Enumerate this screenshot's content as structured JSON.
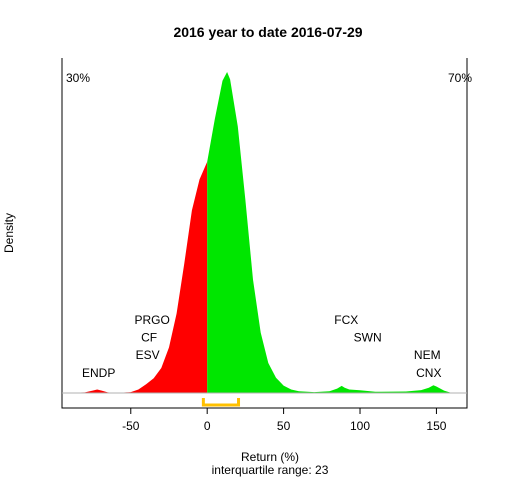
{
  "chart_data": {
    "type": "area",
    "title": "2016  year to date 2016-07-29",
    "xlabel": "Return (%)",
    "ylabel": "Density",
    "subtitle": "interquartile range: 23",
    "xlim": [
      -95,
      170
    ],
    "x_ticks": [
      "-50",
      "0",
      "50",
      "100",
      "150"
    ],
    "split_at": 0,
    "negative_share": "30%",
    "positive_share": "70%",
    "negative_color": "#ff0000",
    "positive_color": "#00e600",
    "iqr_color": "#ffc000",
    "iqr_range": [
      -2.5,
      20.5
    ],
    "density": {
      "x": [
        -95,
        -80,
        -75,
        -72,
        -69,
        -65,
        -60,
        -50,
        -45,
        -40,
        -35,
        -30,
        -25,
        -20,
        -15,
        -10,
        -5,
        0,
        5,
        10,
        13,
        15,
        20,
        25,
        30,
        35,
        40,
        45,
        50,
        55,
        60,
        70,
        80,
        85,
        88,
        90,
        93,
        100,
        110,
        130,
        140,
        145,
        148,
        150,
        155,
        160
      ],
      "y": [
        0,
        0.0002,
        0.0008,
        0.0012,
        0.0008,
        0.0002,
        0,
        0.0003,
        0.0012,
        0.003,
        0.005,
        0.0085,
        0.0155,
        0.027,
        0.044,
        0.062,
        0.0725,
        0.0785,
        0.093,
        0.106,
        0.109,
        0.1065,
        0.0905,
        0.0655,
        0.0385,
        0.0205,
        0.0102,
        0.0052,
        0.0025,
        0.0012,
        0.0006,
        0.0003,
        0.0006,
        0.0015,
        0.0024,
        0.0018,
        0.0012,
        0.0009,
        0.0004,
        0.0005,
        0.001,
        0.0018,
        0.0026,
        0.0022,
        0.0008,
        0
      ]
    },
    "annotations": [
      {
        "text": "ENDP",
        "x": -71,
        "y": 0.0055
      },
      {
        "text": "PRGO",
        "x": -36,
        "y": 0.0235
      },
      {
        "text": "CF",
        "x": -38,
        "y": 0.0175
      },
      {
        "text": "ESV",
        "x": -39,
        "y": 0.0115
      },
      {
        "text": "FCX",
        "x": 91,
        "y": 0.0235
      },
      {
        "text": "SWN",
        "x": 105,
        "y": 0.0175
      },
      {
        "text": "NEM",
        "x": 144,
        "y": 0.0115
      },
      {
        "text": "CNX",
        "x": 145,
        "y": 0.0055
      }
    ]
  }
}
